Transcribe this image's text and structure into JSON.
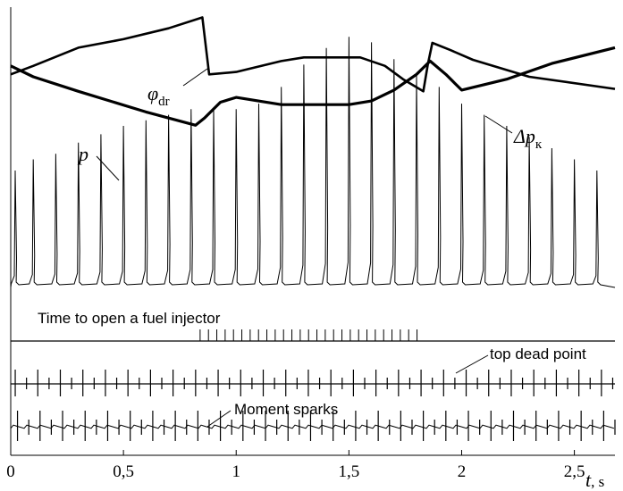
{
  "chart_data": {
    "type": "line",
    "x_axis": {
      "ticks": [
        0,
        0.5,
        1,
        1.5,
        2,
        2.5
      ],
      "tick_labels": [
        "0",
        "0,5",
        "1",
        "1,5",
        "2",
        "2,5"
      ],
      "label_var": "t",
      "label_unit": ", s",
      "range": [
        0,
        2.68
      ]
    },
    "grid": false,
    "series_labels": {
      "phi_dr": {
        "symbol": "φ",
        "subscript": "dr"
      },
      "p": {
        "symbol": "p"
      },
      "dp_k": {
        "symbol": "Δp",
        "subscript": "к"
      }
    },
    "phi_dr": {
      "x": [
        0,
        0.1,
        0.3,
        0.5,
        0.7,
        0.85,
        0.88,
        1.0,
        1.2,
        1.3,
        1.45,
        1.55,
        1.66,
        1.74,
        1.83,
        1.85,
        1.87,
        1.95,
        2.05,
        2.3,
        2.68
      ],
      "y": [
        0.86,
        0.93,
        1.08,
        1.15,
        1.24,
        1.33,
        0.86,
        0.88,
        0.97,
        1.0,
        1.0,
        1.0,
        0.93,
        0.82,
        0.72,
        0.94,
        1.12,
        1.06,
        0.98,
        0.84,
        0.74
      ]
    },
    "dp_k": {
      "x": [
        0,
        0.1,
        0.3,
        0.6,
        0.82,
        0.86,
        0.93,
        1.0,
        1.2,
        1.5,
        1.6,
        1.7,
        1.8,
        1.86,
        1.93,
        2.0,
        2.2,
        2.4,
        2.68
      ],
      "y": [
        0.93,
        0.84,
        0.72,
        0.55,
        0.44,
        0.5,
        0.63,
        0.67,
        0.61,
        0.61,
        0.64,
        0.73,
        0.86,
        0.97,
        0.86,
        0.73,
        0.82,
        0.95,
        1.08
      ]
    },
    "p": {
      "cycle_times": [
        0.02,
        0.1,
        0.2,
        0.3,
        0.4,
        0.5,
        0.6,
        0.7,
        0.8,
        0.9,
        1.0,
        1.1,
        1.2,
        1.3,
        1.4,
        1.5,
        1.6,
        1.7,
        1.8,
        1.9,
        2.0,
        2.1,
        2.2,
        2.3,
        2.4,
        2.5,
        2.6
      ],
      "cycle_period": 0.1,
      "peak_fraction": [
        0.42,
        0.46,
        0.48,
        0.52,
        0.55,
        0.58,
        0.6,
        0.62,
        0.64,
        0.64,
        0.64,
        0.66,
        0.72,
        0.8,
        0.86,
        0.9,
        0.88,
        0.82,
        0.76,
        0.72,
        0.66,
        0.62,
        0.58,
        0.54,
        0.5,
        0.46,
        0.42
      ]
    },
    "annotations": {
      "fuel_injector": "Time to open a fuel injector",
      "top_dead_point": "top dead point",
      "moment_sparks": "Moment sparks"
    },
    "fuel_injector_open": {
      "start": 0.84,
      "end": 1.83
    }
  }
}
